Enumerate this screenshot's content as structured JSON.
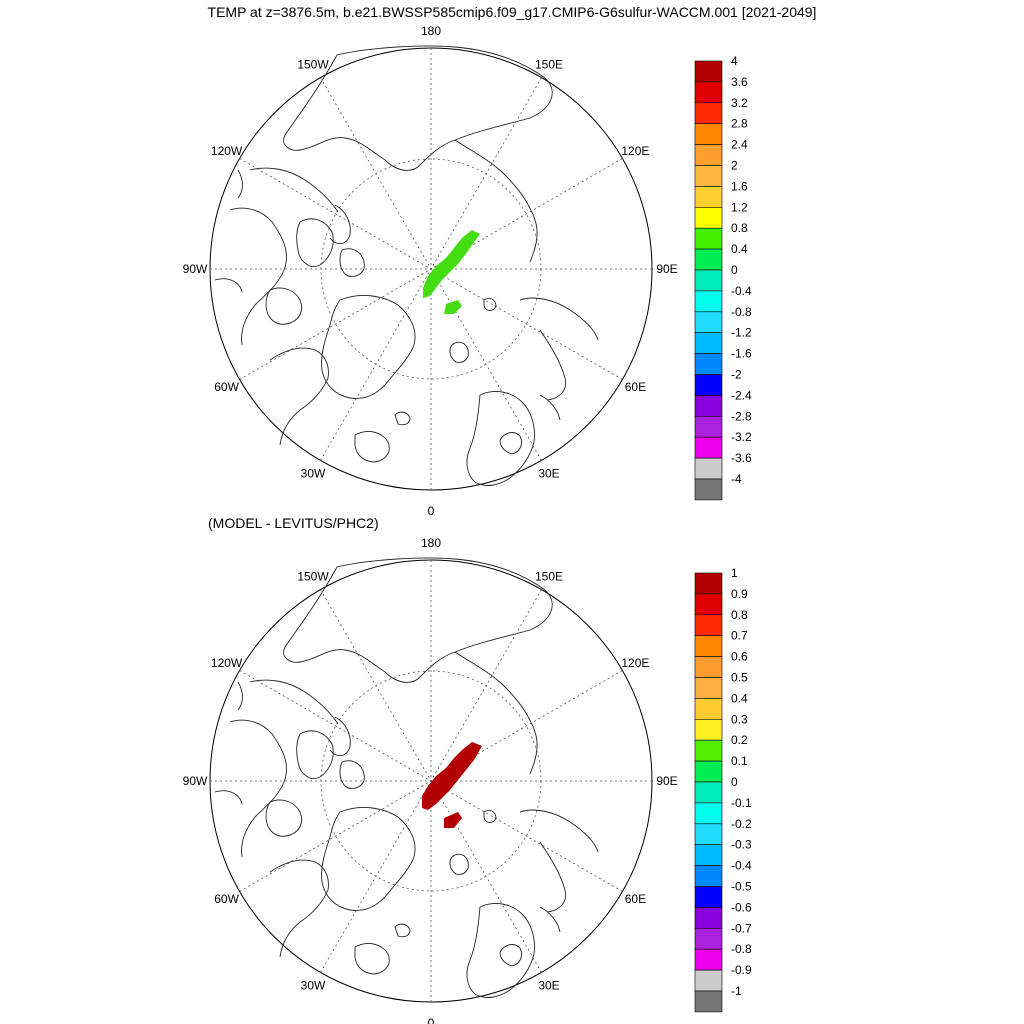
{
  "title": "TEMP at z=3876.5m, b.e21.BWSSP585cmip6.f09_g17.CMIP6-G6sulfur-WACCM.001 [2021-2049]",
  "subtitle": "(MODEL - LEVITUS/PHC2)",
  "projection": "north-polar-stereographic",
  "longitude_labels": [
    "180",
    "150E",
    "120E",
    "90E",
    "60E",
    "30E",
    "0",
    "30W",
    "60W",
    "90W",
    "120W",
    "150W"
  ],
  "colors": {
    "coastline": "#000000",
    "grid": "#555555",
    "top_anomaly_fill": "#44dd11",
    "bottom_anomaly_fill": "#b30000"
  },
  "panels": [
    {
      "name": "top",
      "fill_color_ref": "top_anomaly_fill",
      "colorbar": {
        "labels": [
          "4",
          "3.6",
          "3.2",
          "2.8",
          "2.4",
          "2",
          "1.6",
          "1.2",
          "0.8",
          "0.4",
          "0",
          "-0.4",
          "-0.8",
          "-1.2",
          "-1.6",
          "-2",
          "-2.4",
          "-2.8",
          "-3.2",
          "-3.6",
          "-4"
        ],
        "colors": [
          "#b30000",
          "#e00000",
          "#ff2a00",
          "#ff8800",
          "#ffa030",
          "#ffb840",
          "#ffd030",
          "#ffff00",
          "#44ee00",
          "#00ee55",
          "#00eebb",
          "#00ffee",
          "#22ddff",
          "#00bbff",
          "#0088ff",
          "#0000ff",
          "#8800dd",
          "#aa22dd",
          "#ee00ee",
          "#cccccc",
          "#777777"
        ]
      }
    },
    {
      "name": "bottom",
      "fill_color_ref": "bottom_anomaly_fill",
      "colorbar": {
        "labels": [
          "1",
          "0.9",
          "0.8",
          "0.7",
          "0.6",
          "0.5",
          "0.4",
          "0.3",
          "0.2",
          "0.1",
          "0",
          "-0.1",
          "-0.2",
          "-0.3",
          "-0.4",
          "-0.5",
          "-0.6",
          "-0.7",
          "-0.8",
          "-0.9",
          "-1"
        ],
        "colors": [
          "#b30000",
          "#e00000",
          "#ff2a00",
          "#ff8800",
          "#ff9d30",
          "#ffae40",
          "#ffcc30",
          "#ffee22",
          "#55ee00",
          "#00ee55",
          "#00eebb",
          "#00ffee",
          "#22ddff",
          "#00bbff",
          "#0088ff",
          "#0000ff",
          "#8800dd",
          "#aa22dd",
          "#ee00ee",
          "#cccccc",
          "#777777"
        ]
      }
    }
  ]
}
